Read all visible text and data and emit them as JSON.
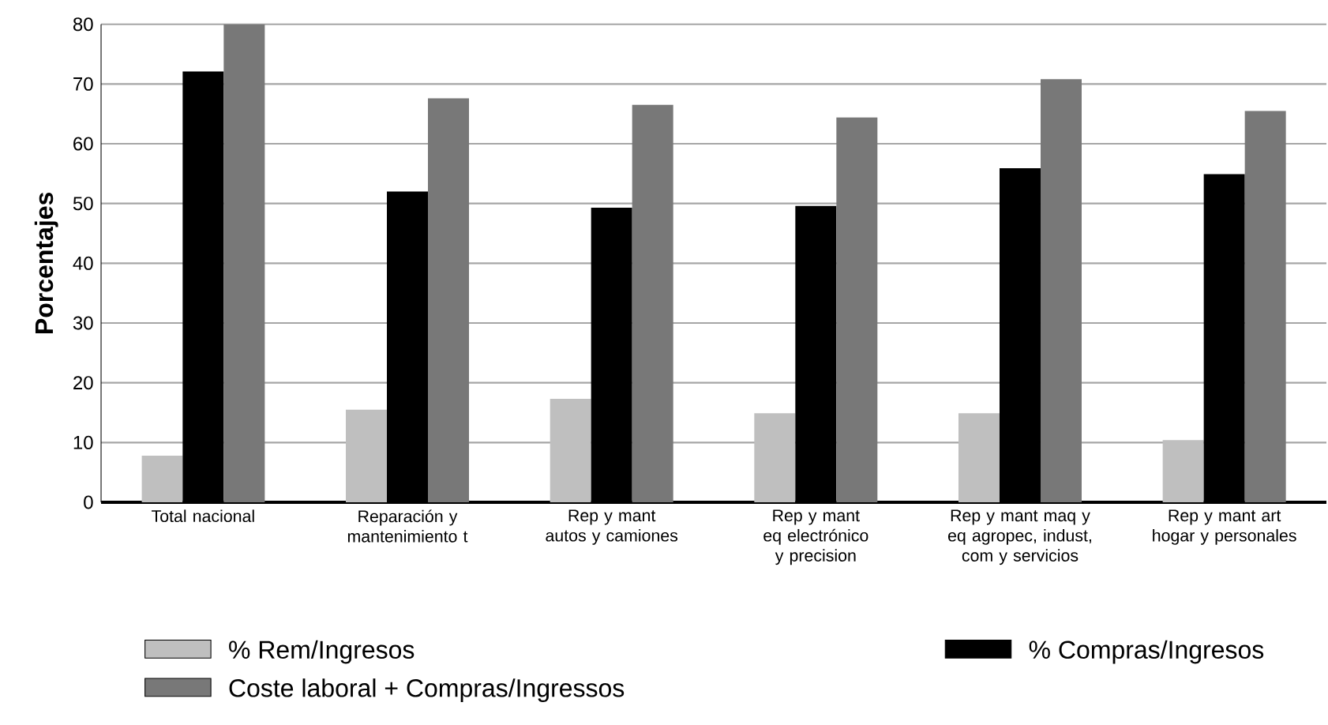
{
  "chart_data": {
    "type": "bar",
    "ylabel": "Porcentajes",
    "categories": [
      "Total nacional",
      "Reparación y mantenimiento t",
      "Rep y mant autos y camiones",
      "Rep y mant eq electrónico y precision",
      "Rep y mant maq y eq agropec, indust, com y servicios",
      "Rep y mant art hogar y personales"
    ],
    "series": [
      {
        "name": "% Rem/Ingresos",
        "color": "#bfbfbf",
        "values": [
          7.8,
          15.5,
          17.3,
          14.9,
          14.9,
          10.4
        ]
      },
      {
        "name": "% Compras/Ingresos",
        "color": "#000000",
        "values": [
          72.1,
          52.0,
          49.3,
          49.6,
          55.9,
          54.9
        ]
      },
      {
        "name": "Coste laboral + Compras/Ingressos",
        "color": "#787878",
        "values": [
          80.0,
          67.6,
          66.5,
          64.4,
          70.8,
          65.5
        ]
      }
    ],
    "ylim": [
      0,
      80
    ],
    "yticks": [
      0,
      10,
      20,
      30,
      40,
      50,
      60,
      70,
      80
    ],
    "grid": "y",
    "legend": "bottom"
  }
}
